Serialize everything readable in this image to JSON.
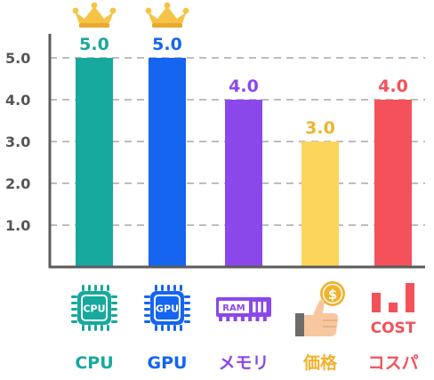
{
  "chart_data": {
    "type": "bar",
    "title": "",
    "xlabel": "",
    "ylabel": "",
    "ylim": [
      0,
      5.0
    ],
    "yticks": [
      "1.0",
      "2.0",
      "3.0",
      "4.0",
      "5.0"
    ],
    "grid": true,
    "categories": [
      "CPU",
      "GPU",
      "メモリ",
      "価格",
      "コスパ"
    ],
    "values": [
      5.0,
      5.0,
      4.0,
      3.0,
      4.0
    ],
    "value_labels": [
      "5.0",
      "5.0",
      "4.0",
      "3.0",
      "4.0"
    ],
    "colors": [
      "#17A99E",
      "#1565F0",
      "#8A48EB",
      "#FCD65A",
      "#F4515A"
    ],
    "label_colors": [
      "#17A99E",
      "#1565F0",
      "#8A48EB",
      "#F2B22C",
      "#F4515A"
    ],
    "crowned": [
      true,
      true,
      false,
      false,
      false
    ],
    "icons": [
      {
        "name": "cpu-chip-icon",
        "text": "CPU"
      },
      {
        "name": "gpu-chip-icon",
        "text": "GPU"
      },
      {
        "name": "ram-module-icon",
        "text": "RAM"
      },
      {
        "name": "thumbs-up-coin-icon",
        "text": "$"
      },
      {
        "name": "cost-bars-icon",
        "text": "COST"
      }
    ]
  }
}
